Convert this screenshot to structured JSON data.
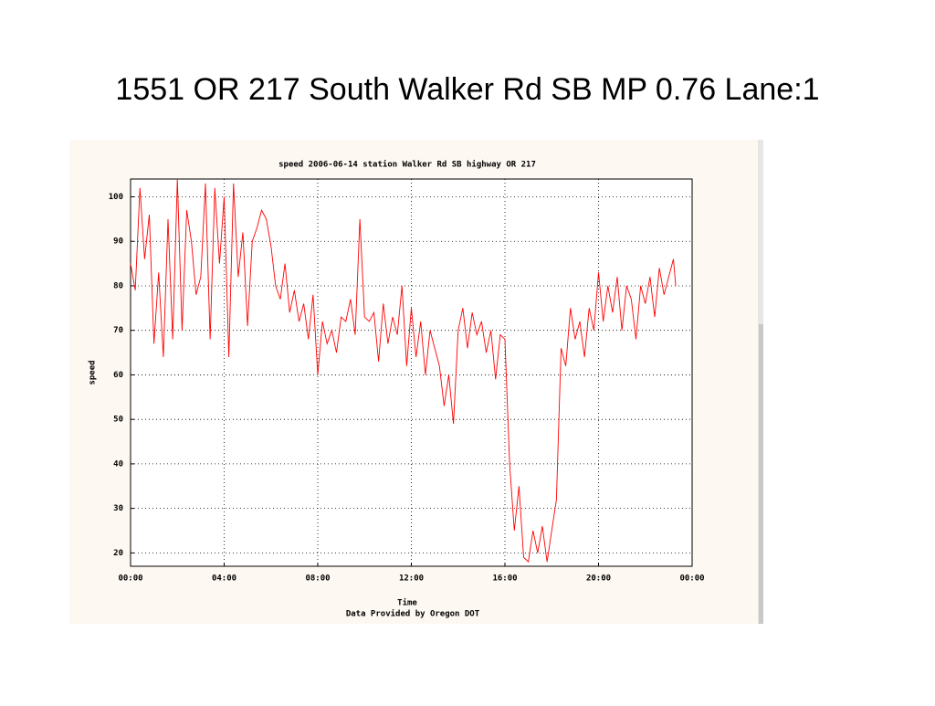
{
  "title": "1551  OR 217 South Walker Rd SB  MP 0.76  Lane:1",
  "chart_data": {
    "type": "line",
    "title": "speed 2006-06-14 station Walker Rd SB highway  OR 217",
    "x_label": "Time",
    "y_label": "speed",
    "note": "Data Provided by Oregon DOT",
    "color": "#ff0000",
    "grid": true,
    "xlim": [
      0,
      24
    ],
    "xticks": [
      {
        "value": 0,
        "label": "00:00"
      },
      {
        "value": 4,
        "label": "04:00"
      },
      {
        "value": 8,
        "label": "08:00"
      },
      {
        "value": 12,
        "label": "12:00"
      },
      {
        "value": 16,
        "label": "16:00"
      },
      {
        "value": 20,
        "label": "20:00"
      },
      {
        "value": 24,
        "label": "00:00"
      }
    ],
    "ylim": [
      17,
      104
    ],
    "yticks": [
      20,
      30,
      40,
      50,
      60,
      70,
      80,
      90,
      100
    ],
    "x": [
      0,
      0.2,
      0.4,
      0.6,
      0.8,
      1,
      1.2,
      1.4,
      1.6,
      1.8,
      2,
      2.2,
      2.4,
      2.6,
      2.8,
      3,
      3.2,
      3.4,
      3.6,
      3.8,
      4,
      4.2,
      4.4,
      4.6,
      4.8,
      5,
      5.2,
      5.4,
      5.6,
      5.8,
      6,
      6.2,
      6.4,
      6.6,
      6.8,
      7,
      7.2,
      7.4,
      7.6,
      7.8,
      8,
      8.2,
      8.4,
      8.6,
      8.8,
      9,
      9.2,
      9.4,
      9.6,
      9.8,
      10,
      10.2,
      10.4,
      10.6,
      10.8,
      11,
      11.2,
      11.4,
      11.6,
      11.8,
      12,
      12.2,
      12.4,
      12.6,
      12.8,
      13,
      13.2,
      13.4,
      13.6,
      13.8,
      14,
      14.2,
      14.4,
      14.6,
      14.8,
      15,
      15.2,
      15.4,
      15.6,
      15.8,
      16,
      16.2,
      16.4,
      16.6,
      16.8,
      17,
      17.2,
      17.4,
      17.6,
      17.8,
      18,
      18.2,
      18.4,
      18.6,
      18.8,
      19,
      19.2,
      19.4,
      19.6,
      19.8,
      20,
      20.2,
      20.4,
      20.6,
      20.8,
      21,
      21.2,
      21.4,
      21.6,
      21.8,
      22,
      22.2,
      22.4,
      22.6,
      22.8,
      23,
      23.2,
      23.3
    ],
    "values": [
      85,
      79,
      102,
      86,
      96,
      67,
      83,
      64,
      95,
      68,
      104,
      70,
      97,
      90,
      78,
      82,
      103,
      68,
      102,
      85,
      100,
      64,
      103,
      82,
      92,
      71,
      90,
      93,
      97,
      95,
      89,
      80,
      77,
      85,
      74,
      79,
      72,
      76,
      68,
      78,
      60,
      72,
      67,
      70,
      65,
      73,
      72,
      77,
      69,
      95,
      73,
      72,
      74,
      63,
      76,
      67,
      73,
      69,
      80,
      62,
      75,
      64,
      72,
      60,
      70,
      66,
      62,
      53,
      60,
      49,
      70,
      75,
      66,
      74,
      69,
      72,
      65,
      70,
      59,
      69,
      68,
      40,
      25,
      35,
      19,
      18,
      25,
      20,
      26,
      18,
      25,
      32,
      66,
      62,
      75,
      68,
      72,
      64,
      75,
      70,
      83,
      72,
      80,
      74,
      82,
      70,
      80,
      77,
      68,
      80,
      76,
      82,
      73,
      84,
      78,
      82,
      86,
      80
    ]
  }
}
